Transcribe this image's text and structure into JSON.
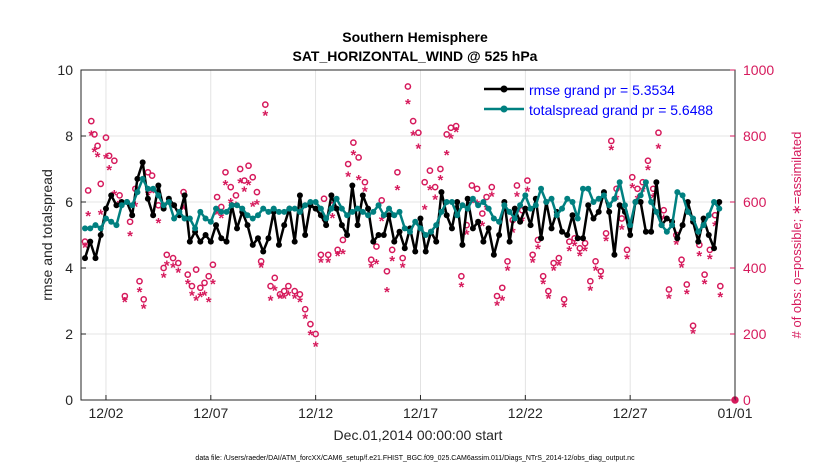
{
  "chart_data": {
    "type": "line",
    "title": [
      "Southern Hemisphere",
      "SAT_HORIZONTAL_WIND @ 525 hPa"
    ],
    "xlabel": "Dec.01,2014 00:00:00 start",
    "ylabel_left": "rmse and totalspread",
    "ylabel_right": "# of obs: o=possible; ∗=assimilated",
    "footnote": "data file: /Users/raeder/DAI/ATM_forcXX/CAM6_setup/f.e21.FHIST_BGC.f09_025.CAM6assim.011/Diags_NTrS_2014-12/obs_diag_output.nc",
    "xlim": [
      0.5,
      31.5
    ],
    "ylim_left": [
      0,
      10
    ],
    "ylim_right": [
      0,
      1000
    ],
    "x_ticks": [
      {
        "x": 2,
        "label": "12/02"
      },
      {
        "x": 7,
        "label": "12/07"
      },
      {
        "x": 12,
        "label": "12/12"
      },
      {
        "x": 17,
        "label": "12/17"
      },
      {
        "x": 22,
        "label": "12/22"
      },
      {
        "x": 27,
        "label": "12/27"
      },
      {
        "x": 32,
        "label": "01/01"
      }
    ],
    "y_ticks_left": [
      "0",
      "2",
      "4",
      "6",
      "8",
      "10"
    ],
    "y_ticks_right": [
      "0",
      "200",
      "400",
      "600",
      "800",
      "1000"
    ],
    "colors": {
      "rmse": "#000000",
      "totalspread": "#008080",
      "obs": "#d61a5c",
      "legend_text": "#0000ff"
    },
    "legend": [
      "rmse grand pr = 5.3534",
      "totalspread grand pr = 5.6488"
    ],
    "x": [
      1.0,
      1.25,
      1.5,
      1.75,
      2.0,
      2.25,
      2.5,
      2.75,
      3.0,
      3.25,
      3.5,
      3.75,
      4.0,
      4.25,
      4.5,
      4.75,
      5.0,
      5.25,
      5.5,
      5.75,
      6.0,
      6.25,
      6.5,
      6.75,
      7.0,
      7.25,
      7.5,
      7.75,
      8.0,
      8.25,
      8.5,
      8.75,
      9.0,
      9.25,
      9.5,
      9.75,
      10.0,
      10.25,
      10.5,
      10.75,
      11.0,
      11.25,
      11.5,
      11.75,
      12.0,
      12.25,
      12.5,
      12.75,
      13.0,
      13.25,
      13.5,
      13.75,
      14.0,
      14.25,
      14.5,
      14.75,
      15.0,
      15.25,
      15.5,
      15.75,
      16.0,
      16.25,
      16.5,
      16.75,
      17.0,
      17.25,
      17.5,
      17.75,
      18.0,
      18.25,
      18.5,
      18.75,
      19.0,
      19.25,
      19.5,
      19.75,
      20.0,
      20.25,
      20.5,
      20.75,
      21.0,
      21.25,
      21.5,
      21.75,
      22.0,
      22.25,
      22.5,
      22.75,
      23.0,
      23.25,
      23.5,
      23.75,
      24.0,
      24.25,
      24.5,
      24.75,
      25.0,
      25.25,
      25.5,
      25.75,
      26.0,
      26.25,
      26.5,
      26.75,
      27.0,
      27.25,
      27.5,
      27.75,
      28.0,
      28.25,
      28.5,
      28.75,
      29.0,
      29.25,
      29.5,
      29.75,
      30.0,
      30.25,
      30.5,
      30.75,
      31.0,
      31.25
    ],
    "series": [
      {
        "name": "rmse",
        "values": [
          4.3,
          4.8,
          4.3,
          5.0,
          5.8,
          6.2,
          5.9,
          6.0,
          6.0,
          5.6,
          6.7,
          7.2,
          6.1,
          5.6,
          6.5,
          5.8,
          6.1,
          5.9,
          5.6,
          6.2,
          4.8,
          5.1,
          4.8,
          5.0,
          4.8,
          5.3,
          4.9,
          4.8,
          5.9,
          5.2,
          5.7,
          5.3,
          4.7,
          4.9,
          4.5,
          4.9,
          5.7,
          4.7,
          5.3,
          5.8,
          4.8,
          6.2,
          5.0,
          5.9,
          5.8,
          5.6,
          5.3,
          6.2,
          5.8,
          5.3,
          5.0,
          6.5,
          5.3,
          6.2,
          5.8,
          4.8,
          5.0,
          5.0,
          5.6,
          4.8,
          5.1,
          4.6,
          5.2,
          4.5,
          5.5,
          4.5,
          5.1,
          4.8,
          6.3,
          5.6,
          5.2,
          6.0,
          4.7,
          6.1,
          5.2,
          5.4,
          4.8,
          5.2,
          4.4,
          5.0,
          6.0,
          4.8,
          5.8,
          5.4,
          5.8,
          5.3,
          6.1,
          4.9,
          6.0,
          5.2,
          5.7,
          5.1,
          5.0,
          5.6,
          4.9,
          4.9,
          5.9,
          5.5,
          5.7,
          6.3,
          5.7,
          4.4,
          5.9,
          5.7,
          5.0,
          6.0,
          6.0,
          5.1,
          5.1,
          6.6,
          5.3,
          5.5,
          5.4,
          4.9,
          5.3,
          6.0,
          5.4,
          4.8,
          5.5,
          5.0,
          4.6,
          6.0
        ]
      },
      {
        "name": "totalspread",
        "values": [
          5.2,
          5.2,
          5.3,
          5.2,
          5.5,
          5.4,
          5.3,
          5.9,
          6.0,
          5.9,
          6.3,
          6.7,
          6.4,
          6.4,
          6.2,
          5.9,
          6.0,
          5.5,
          5.7,
          5.5,
          5.5,
          5.2,
          5.7,
          5.5,
          5.4,
          5.8,
          5.7,
          5.7,
          5.9,
          5.9,
          5.8,
          5.6,
          5.5,
          5.6,
          5.8,
          5.7,
          5.8,
          5.7,
          5.7,
          5.8,
          5.8,
          5.7,
          5.9,
          6.0,
          6.0,
          5.8,
          5.5,
          5.8,
          6.1,
          5.8,
          5.6,
          5.7,
          5.8,
          5.7,
          5.6,
          5.7,
          5.9,
          5.6,
          5.8,
          5.6,
          5.7,
          5.2,
          5.1,
          5.4,
          5.2,
          5.0,
          5.1,
          5.3,
          5.7,
          6.0,
          6.0,
          5.6,
          5.9,
          5.8,
          6.1,
          5.9,
          6.0,
          5.8,
          5.5,
          5.4,
          5.9,
          5.7,
          5.5,
          5.9,
          6.2,
          5.8,
          5.9,
          6.4,
          6.0,
          6.1,
          5.6,
          5.8,
          6.1,
          6.0,
          5.5,
          6.4,
          6.4,
          6.0,
          6.1,
          6.2,
          5.9,
          6.1,
          6.6,
          5.9,
          5.3,
          6.0,
          6.2,
          6.6,
          6.0,
          5.7,
          5.3,
          5.1,
          5.3,
          6.3,
          6.2,
          5.7,
          5.5,
          5.1,
          5.3,
          5.6,
          6.0,
          5.8
        ]
      }
    ],
    "obs_possible": [
      [
        1.0,
        480
      ],
      [
        1.15,
        635
      ],
      [
        1.3,
        845
      ],
      [
        1.45,
        805
      ],
      [
        1.6,
        770
      ],
      [
        1.75,
        655
      ],
      [
        2.0,
        795
      ],
      [
        2.15,
        740
      ],
      [
        2.4,
        725
      ],
      [
        2.65,
        620
      ],
      [
        2.9,
        315
      ],
      [
        3.15,
        540
      ],
      [
        3.4,
        640
      ],
      [
        3.6,
        360
      ],
      [
        3.8,
        305
      ],
      [
        4.0,
        690
      ],
      [
        4.2,
        680
      ],
      [
        4.5,
        590
      ],
      [
        4.75,
        400
      ],
      [
        4.9,
        440
      ],
      [
        5.2,
        430
      ],
      [
        5.45,
        415
      ],
      [
        5.7,
        630
      ],
      [
        5.9,
        380
      ],
      [
        6.1,
        345
      ],
      [
        6.3,
        395
      ],
      [
        6.5,
        340
      ],
      [
        6.7,
        355
      ],
      [
        6.9,
        375
      ],
      [
        7.1,
        410
      ],
      [
        7.3,
        615
      ],
      [
        7.5,
        585
      ],
      [
        7.7,
        690
      ],
      [
        7.95,
        645
      ],
      [
        8.2,
        620
      ],
      [
        8.4,
        700
      ],
      [
        8.6,
        665
      ],
      [
        8.8,
        710
      ],
      [
        9.0,
        675
      ],
      [
        9.2,
        630
      ],
      [
        9.4,
        420
      ],
      [
        9.6,
        895
      ],
      [
        9.85,
        345
      ],
      [
        10.05,
        370
      ],
      [
        10.3,
        320
      ],
      [
        10.5,
        330
      ],
      [
        10.7,
        345
      ],
      [
        11.0,
        330
      ],
      [
        11.25,
        320
      ],
      [
        11.5,
        275
      ],
      [
        11.75,
        230
      ],
      [
        12.0,
        200
      ],
      [
        12.25,
        440
      ],
      [
        12.4,
        610
      ],
      [
        12.6,
        440
      ],
      [
        12.8,
        590
      ],
      [
        13.05,
        455
      ],
      [
        13.3,
        485
      ],
      [
        13.55,
        715
      ],
      [
        13.8,
        780
      ],
      [
        14.05,
        735
      ],
      [
        14.35,
        660
      ],
      [
        14.65,
        425
      ],
      [
        14.9,
        465
      ],
      [
        15.15,
        605
      ],
      [
        15.4,
        390
      ],
      [
        15.65,
        455
      ],
      [
        15.9,
        690
      ],
      [
        16.15,
        430
      ],
      [
        16.4,
        950
      ],
      [
        16.65,
        845
      ],
      [
        16.9,
        810
      ],
      [
        17.2,
        660
      ],
      [
        17.45,
        695
      ],
      [
        17.7,
        645
      ],
      [
        17.95,
        700
      ],
      [
        18.25,
        805
      ],
      [
        18.45,
        825
      ],
      [
        18.7,
        830
      ],
      [
        18.95,
        375
      ],
      [
        19.2,
        530
      ],
      [
        19.45,
        650
      ],
      [
        19.7,
        640
      ],
      [
        19.95,
        565
      ],
      [
        20.15,
        615
      ],
      [
        20.4,
        645
      ],
      [
        20.65,
        315
      ],
      [
        20.9,
        340
      ],
      [
        21.15,
        420
      ],
      [
        21.4,
        545
      ],
      [
        21.6,
        650
      ],
      [
        21.85,
        575
      ],
      [
        22.1,
        665
      ],
      [
        22.35,
        440
      ],
      [
        22.6,
        485
      ],
      [
        22.85,
        375
      ],
      [
        23.1,
        330
      ],
      [
        23.35,
        415
      ],
      [
        23.6,
        430
      ],
      [
        23.85,
        305
      ],
      [
        24.1,
        480
      ],
      [
        24.35,
        490
      ],
      [
        24.6,
        460
      ],
      [
        24.85,
        475
      ],
      [
        25.1,
        360
      ],
      [
        25.35,
        420
      ],
      [
        25.6,
        390
      ],
      [
        25.85,
        505
      ],
      [
        26.1,
        785
      ],
      [
        26.35,
        640
      ],
      [
        26.6,
        550
      ],
      [
        26.85,
        455
      ],
      [
        27.1,
        675
      ],
      [
        27.35,
        640
      ],
      [
        27.6,
        660
      ],
      [
        27.85,
        725
      ],
      [
        28.1,
        640
      ],
      [
        28.35,
        810
      ],
      [
        28.6,
        575
      ],
      [
        28.85,
        335
      ],
      [
        29.2,
        500
      ],
      [
        29.45,
        425
      ],
      [
        29.7,
        350
      ],
      [
        30.0,
        225
      ],
      [
        30.3,
        470
      ],
      [
        30.55,
        380
      ],
      [
        30.8,
        455
      ],
      [
        31.05,
        560
      ],
      [
        31.3,
        345
      ]
    ],
    "obs_assimilated": [
      [
        1.0,
        465
      ],
      [
        1.15,
        560
      ],
      [
        1.3,
        805
      ],
      [
        1.45,
        755
      ],
      [
        1.6,
        740
      ],
      [
        1.75,
        565
      ],
      [
        2.0,
        735
      ],
      [
        2.15,
        700
      ],
      [
        2.4,
        625
      ],
      [
        2.65,
        595
      ],
      [
        2.9,
        300
      ],
      [
        3.15,
        500
      ],
      [
        3.4,
        590
      ],
      [
        3.6,
        330
      ],
      [
        3.8,
        280
      ],
      [
        4.0,
        625
      ],
      [
        4.2,
        630
      ],
      [
        4.5,
        540
      ],
      [
        4.75,
        375
      ],
      [
        4.9,
        410
      ],
      [
        5.2,
        405
      ],
      [
        5.45,
        390
      ],
      [
        5.7,
        580
      ],
      [
        5.9,
        355
      ],
      [
        6.1,
        320
      ],
      [
        6.3,
        305
      ],
      [
        6.5,
        315
      ],
      [
        6.7,
        320
      ],
      [
        6.9,
        300
      ],
      [
        7.1,
        355
      ],
      [
        7.3,
        565
      ],
      [
        7.5,
        555
      ],
      [
        7.7,
        655
      ],
      [
        7.95,
        600
      ],
      [
        8.2,
        590
      ],
      [
        8.4,
        660
      ],
      [
        8.6,
        635
      ],
      [
        8.8,
        655
      ],
      [
        9.0,
        590
      ],
      [
        9.2,
        595
      ],
      [
        9.4,
        405
      ],
      [
        9.6,
        865
      ],
      [
        9.85,
        305
      ],
      [
        10.05,
        335
      ],
      [
        10.3,
        310
      ],
      [
        10.5,
        310
      ],
      [
        10.7,
        320
      ],
      [
        11.0,
        310
      ],
      [
        11.25,
        300
      ],
      [
        11.5,
        250
      ],
      [
        11.75,
        200
      ],
      [
        12.0,
        165
      ],
      [
        12.25,
        420
      ],
      [
        12.4,
        545
      ],
      [
        12.6,
        420
      ],
      [
        12.8,
        555
      ],
      [
        13.05,
        440
      ],
      [
        13.3,
        445
      ],
      [
        13.55,
        680
      ],
      [
        13.8,
        745
      ],
      [
        14.05,
        670
      ],
      [
        14.35,
        635
      ],
      [
        14.65,
        405
      ],
      [
        14.9,
        415
      ],
      [
        15.15,
        545
      ],
      [
        15.4,
        330
      ],
      [
        15.65,
        425
      ],
      [
        15.9,
        640
      ],
      [
        16.15,
        405
      ],
      [
        16.4,
        900
      ],
      [
        16.65,
        805
      ],
      [
        16.9,
        765
      ],
      [
        17.2,
        580
      ],
      [
        17.45,
        640
      ],
      [
        17.7,
        610
      ],
      [
        17.95,
        670
      ],
      [
        18.25,
        745
      ],
      [
        18.45,
        795
      ],
      [
        18.7,
        815
      ],
      [
        18.95,
        345
      ],
      [
        19.2,
        505
      ],
      [
        19.45,
        600
      ],
      [
        19.7,
        595
      ],
      [
        19.95,
        530
      ],
      [
        20.15,
        580
      ],
      [
        20.4,
        620
      ],
      [
        20.65,
        290
      ],
      [
        20.9,
        305
      ],
      [
        21.15,
        395
      ],
      [
        21.4,
        510
      ],
      [
        21.6,
        620
      ],
      [
        21.85,
        545
      ],
      [
        22.1,
        635
      ],
      [
        22.35,
        420
      ],
      [
        22.6,
        460
      ],
      [
        22.85,
        355
      ],
      [
        23.1,
        310
      ],
      [
        23.35,
        395
      ],
      [
        23.6,
        410
      ],
      [
        23.85,
        285
      ],
      [
        24.1,
        455
      ],
      [
        24.35,
        470
      ],
      [
        24.6,
        440
      ],
      [
        24.85,
        455
      ],
      [
        25.1,
        335
      ],
      [
        25.35,
        395
      ],
      [
        25.6,
        370
      ],
      [
        25.85,
        485
      ],
      [
        26.1,
        760
      ],
      [
        26.35,
        610
      ],
      [
        26.6,
        520
      ],
      [
        26.85,
        430
      ],
      [
        27.1,
        645
      ],
      [
        27.35,
        610
      ],
      [
        27.6,
        635
      ],
      [
        27.85,
        700
      ],
      [
        28.1,
        615
      ],
      [
        28.35,
        765
      ],
      [
        28.6,
        550
      ],
      [
        28.85,
        310
      ],
      [
        29.2,
        475
      ],
      [
        29.45,
        405
      ],
      [
        29.7,
        325
      ],
      [
        30.0,
        205
      ],
      [
        30.3,
        440
      ],
      [
        30.55,
        355
      ],
      [
        30.8,
        430
      ],
      [
        31.05,
        530
      ],
      [
        31.3,
        315
      ]
    ],
    "obs_zero_marker": [
      32.0,
      0
    ]
  }
}
